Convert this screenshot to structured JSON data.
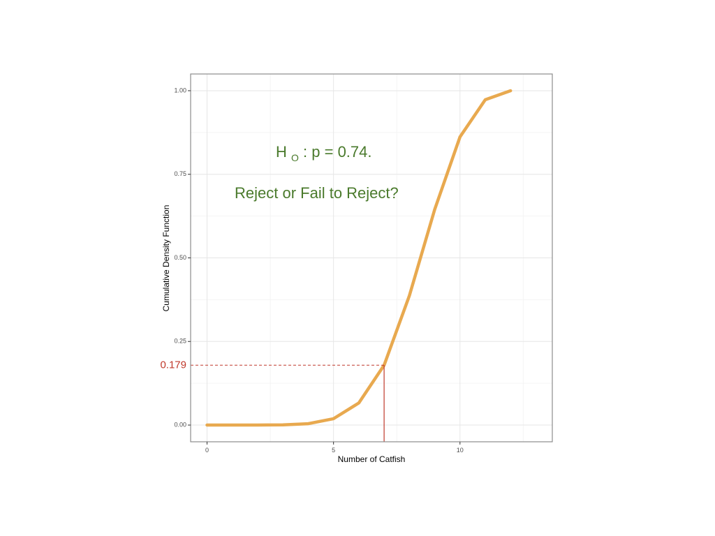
{
  "chart_data": {
    "type": "line",
    "xlabel": "Number of Catfish",
    "ylabel": "Cumulative Density Function",
    "xlim": [
      -0.65,
      13.65
    ],
    "ylim": [
      -0.05,
      1.05
    ],
    "x_ticks": [
      0,
      5,
      10
    ],
    "x_tick_labels": [
      "0",
      "5",
      "10"
    ],
    "x_minor_ticks": [
      2.5,
      7.5,
      12.5
    ],
    "y_ticks": [
      0,
      0.25,
      0.5,
      0.75,
      1.0
    ],
    "y_tick_labels": [
      "0.00",
      "0.25",
      "0.50",
      "0.75",
      "1.00"
    ],
    "y_minor_ticks": [
      0.125,
      0.375,
      0.625,
      0.875
    ],
    "grid": true,
    "series": [
      {
        "x": [
          0,
          1,
          2,
          3,
          4,
          5,
          6,
          7,
          8,
          9,
          10,
          11,
          12
        ],
        "values": [
          0.0,
          0.0,
          0.0,
          0.0005,
          0.004,
          0.019,
          0.066,
          0.179,
          0.387,
          0.645,
          0.862,
          0.973,
          1.0
        ],
        "color": "#e8a94f"
      }
    ],
    "reference": {
      "x": 7,
      "y": 0.179,
      "label": "0.179",
      "color": "#c0392b"
    },
    "annotations": {
      "hypothesis": {
        "main": "H",
        "sub": "O",
        "rest": ": p = 0.74."
      },
      "question": "Reject or Fail to Reject?",
      "color": "#4a7a2c"
    },
    "colors": {
      "panel_border": "#8c8c8c",
      "grid_major": "#e6e6e6",
      "grid_minor": "#f2f2f2"
    }
  }
}
